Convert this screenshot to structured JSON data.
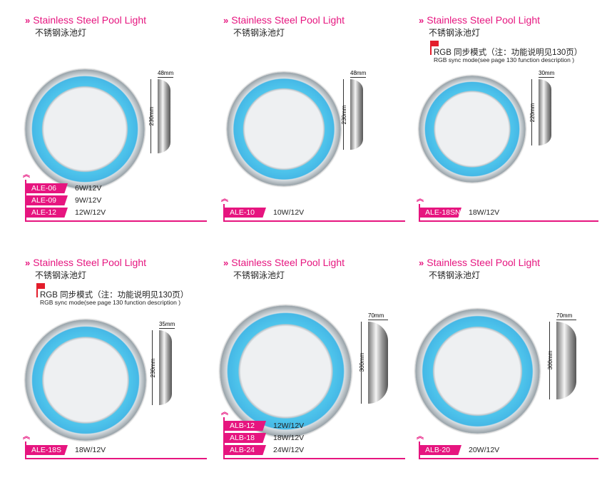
{
  "accent": "#e6157f",
  "products": [
    {
      "title": "Stainless Steel Pool Light",
      "subtitle": "不锈钢泳池灯",
      "height": "230mm",
      "depth": "48mm",
      "models": [
        {
          "code": "ALE-06",
          "spec": "6W/12V"
        },
        {
          "code": "ALE-09",
          "spec": "9W/12V"
        },
        {
          "code": "ALE-12",
          "spec": "12W/12V"
        }
      ]
    },
    {
      "title": "Stainless Steel Pool Light",
      "subtitle": "不锈钢泳池灯",
      "height": "230mm",
      "depth": "48mm",
      "models": [
        {
          "code": "ALE-10",
          "spec": "10W/12V"
        }
      ]
    },
    {
      "title": "Stainless Steel Pool Light",
      "subtitle": "不锈钢泳池灯",
      "rgb": "RGB 同步模式（注：功能说明见130页）",
      "rgb_en": "RGB sync mode(see page 130 function description )",
      "height": "220mm",
      "depth": "30mm",
      "models": [
        {
          "code": "ALE-18SN",
          "spec": "18W/12V"
        }
      ]
    },
    {
      "title": "Stainless Steel Pool Light",
      "subtitle": "不锈钢泳池灯",
      "rgb": "RGB 同步模式（注：功能说明见130页）",
      "rgb_en": "RGB sync mode(see page 130 function description )",
      "height": "230mm",
      "depth": "35mm",
      "models": [
        {
          "code": "ALE-18S",
          "spec": "18W/12V"
        }
      ]
    },
    {
      "title": "Stainless Steel Pool Light",
      "subtitle": "不锈钢泳池灯",
      "height": "300mm",
      "depth": "70mm",
      "models": [
        {
          "code": "ALB-12",
          "spec": "12W/12V"
        },
        {
          "code": "ALB-18",
          "spec": "18W/12V"
        },
        {
          "code": "ALB-24",
          "spec": "24W/12V"
        }
      ]
    },
    {
      "title": "Stainless Steel Pool Light",
      "subtitle": "不锈钢泳池灯",
      "height": "300mm",
      "depth": "70mm",
      "models": [
        {
          "code": "ALB-20",
          "spec": "20W/12V"
        }
      ]
    }
  ]
}
